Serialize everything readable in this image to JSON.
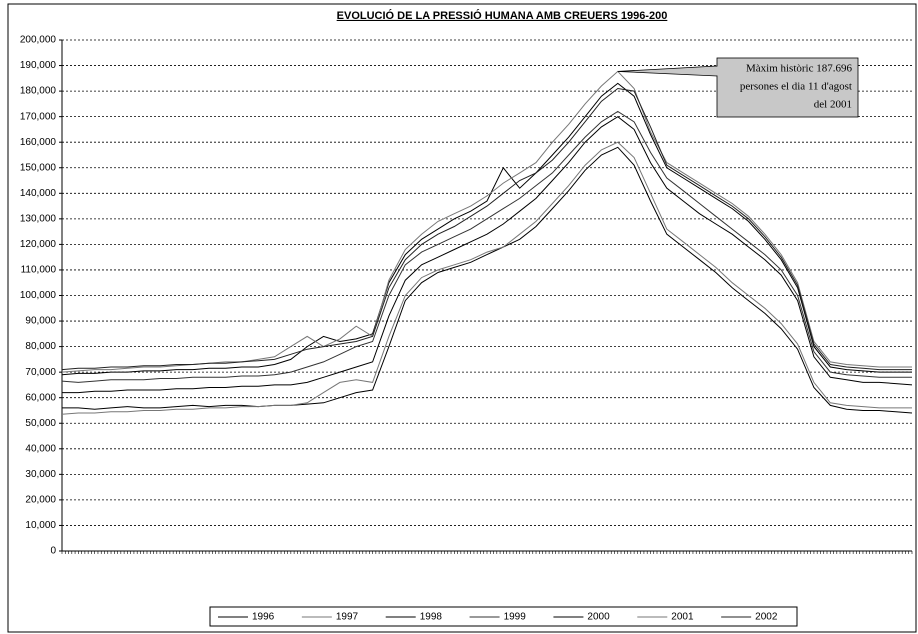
{
  "chart_data": {
    "type": "line",
    "title": "EVOLUCIÓ DE LA PRESSIÓ HUMANA AMB CREUERS 1996-200",
    "annotation": [
      "Màxim històric 187.696",
      "persones el dia 11 d'agost",
      "del 2001"
    ],
    "ylim": [
      0,
      200000
    ],
    "yticks": [
      0,
      {
        "value": 10000,
        "label": "10,000"
      },
      {
        "value": 20000,
        "label": "20,000"
      },
      {
        "value": 30000,
        "label": "30,000"
      },
      {
        "value": 40000,
        "label": "40,000"
      },
      {
        "value": 50000,
        "label": "50,000"
      },
      {
        "value": 60000,
        "label": "60,000"
      },
      {
        "value": 70000,
        "label": "70,000"
      },
      {
        "value": 80000,
        "label": "80,000"
      },
      {
        "value": 90000,
        "label": "90,000"
      },
      {
        "value": 100000,
        "label": "100,000"
      },
      {
        "value": 110000,
        "label": "110,000"
      },
      {
        "value": 120000,
        "label": "120,000"
      },
      {
        "value": 130000,
        "label": "130,000"
      },
      {
        "value": 140000,
        "label": "140,000"
      },
      {
        "value": 150000,
        "label": "150,000"
      },
      {
        "value": 160000,
        "label": "160,000"
      },
      {
        "value": 170000,
        "label": "170,000"
      },
      {
        "value": 180000,
        "label": "180,000"
      },
      {
        "value": 190000,
        "label": "190,000"
      },
      {
        "value": 200000,
        "label": "200,000"
      }
    ],
    "grid": true,
    "legend": "bottom",
    "series": [
      {
        "name": "1996",
        "color": "#000000",
        "values": [
          56000,
          56000,
          55500,
          56000,
          56500,
          56000,
          56000,
          56500,
          57000,
          56500,
          57000,
          57000,
          56500,
          57000,
          57000,
          57500,
          58000,
          60000,
          62000,
          63000,
          80000,
          98000,
          105000,
          109000,
          111000,
          113000,
          116000,
          119000,
          122000,
          127000,
          134000,
          141000,
          149000,
          155000,
          158000,
          151000,
          137000,
          124000,
          119000,
          114000,
          109000,
          103000,
          98000,
          93000,
          87000,
          79000,
          64000,
          57000,
          55500,
          55000,
          55000,
          54500,
          54000
        ]
      },
      {
        "name": "1997",
        "color": "#777777",
        "values": [
          53500,
          54000,
          54000,
          54500,
          54500,
          55000,
          55000,
          55500,
          55500,
          56000,
          56000,
          56500,
          56500,
          57000,
          57000,
          58000,
          62000,
          66000,
          67000,
          66000,
          84000,
          100000,
          107000,
          110000,
          112000,
          114000,
          117000,
          119000,
          124000,
          129000,
          136000,
          143000,
          151000,
          157000,
          160000,
          154000,
          140000,
          126000,
          121000,
          116000,
          111000,
          105000,
          100000,
          95000,
          89000,
          81000,
          66000,
          58000,
          57000,
          56500,
          56000,
          56000,
          56000
        ]
      },
      {
        "name": "1998",
        "color": "#000000",
        "values": [
          62000,
          62000,
          62500,
          62500,
          63000,
          63000,
          63000,
          63500,
          63500,
          64000,
          64000,
          64500,
          64500,
          65000,
          65000,
          66000,
          68000,
          70000,
          72000,
          74000,
          92000,
          106000,
          112000,
          115000,
          118000,
          121000,
          124000,
          128000,
          133000,
          138000,
          145000,
          152000,
          160000,
          166000,
          170000,
          165000,
          152000,
          142000,
          137000,
          132000,
          128000,
          124000,
          119000,
          114000,
          108000,
          98000,
          76000,
          68000,
          67000,
          66000,
          66000,
          65500,
          65000
        ]
      },
      {
        "name": "1999",
        "color": "#333333",
        "values": [
          66500,
          66000,
          66500,
          67000,
          67000,
          67000,
          67500,
          67500,
          68000,
          68000,
          68000,
          68500,
          68500,
          69000,
          70000,
          72000,
          74000,
          77000,
          80000,
          82000,
          100000,
          112000,
          117000,
          120000,
          123000,
          126000,
          130000,
          134000,
          138000,
          143000,
          148000,
          155000,
          162000,
          168000,
          172000,
          168000,
          156000,
          146000,
          141000,
          136000,
          131000,
          126000,
          121000,
          116000,
          110000,
          100000,
          78000,
          70000,
          69000,
          68500,
          68000,
          68000,
          68000
        ]
      },
      {
        "name": "2000",
        "color": "#000000",
        "values": [
          69000,
          69500,
          69500,
          70000,
          70000,
          70500,
          70500,
          71000,
          71000,
          71500,
          71500,
          72000,
          72000,
          73000,
          75000,
          80000,
          84000,
          82000,
          83000,
          85000,
          105000,
          116000,
          122000,
          126000,
          130000,
          133000,
          137000,
          150000,
          142000,
          148000,
          155000,
          162000,
          170000,
          178000,
          183000,
          178000,
          163000,
          150000,
          146000,
          142000,
          138000,
          134000,
          129000,
          122000,
          114000,
          103000,
          80000,
          72000,
          71000,
          70500,
          70000,
          70000,
          70000
        ]
      },
      {
        "name": "2001",
        "color": "#777777",
        "values": [
          70000,
          70500,
          71000,
          71000,
          71500,
          72000,
          72000,
          72500,
          73000,
          73500,
          74000,
          74000,
          75000,
          76000,
          80000,
          84000,
          80000,
          83000,
          88000,
          84000,
          106000,
          118000,
          124000,
          129000,
          132000,
          135000,
          139000,
          144000,
          148000,
          152000,
          160000,
          167000,
          175000,
          182000,
          187696,
          181000,
          164000,
          152000,
          148000,
          144000,
          140000,
          136000,
          131000,
          124000,
          116000,
          105000,
          82000,
          74000,
          73000,
          72500,
          72000,
          72000,
          72000
        ]
      },
      {
        "name": "2002",
        "color": "#222222",
        "values": [
          71000,
          71500,
          71500,
          72000,
          72000,
          72500,
          72500,
          73000,
          73000,
          73500,
          73500,
          74000,
          74500,
          75000,
          77000,
          79000,
          80000,
          81000,
          82000,
          84000,
          103000,
          114000,
          120000,
          124000,
          127000,
          131000,
          135000,
          140000,
          145000,
          148000,
          153000,
          160000,
          168000,
          176000,
          181000,
          180000,
          166000,
          151000,
          147000,
          143000,
          139000,
          135000,
          130000,
          123000,
          115000,
          104000,
          81000,
          73000,
          72000,
          71500,
          71000,
          71000,
          71000
        ]
      }
    ]
  }
}
